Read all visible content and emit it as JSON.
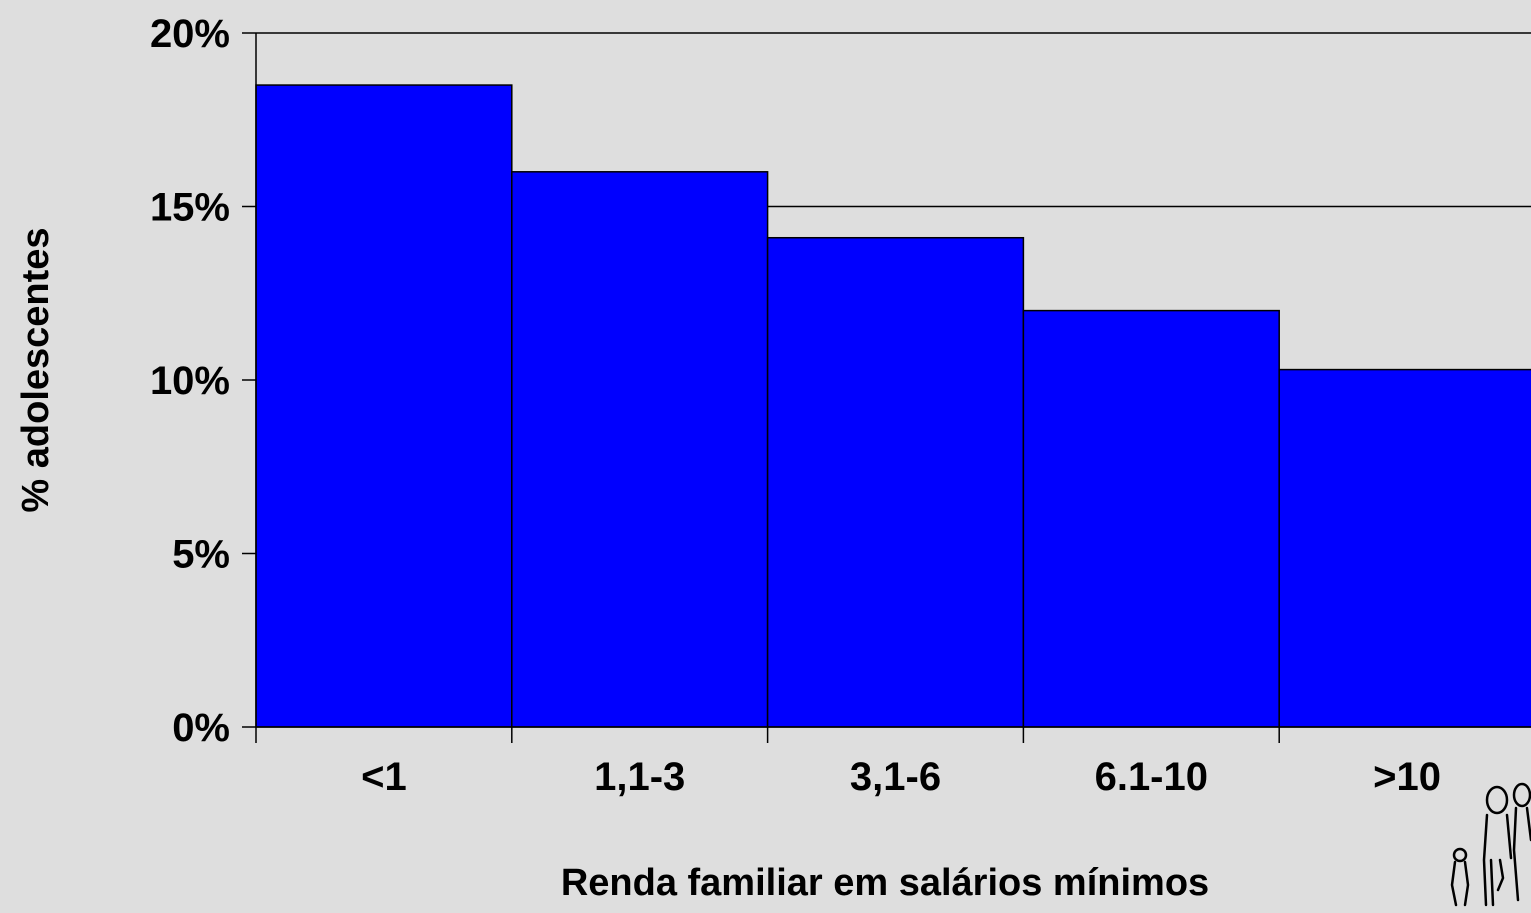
{
  "chart_data": {
    "type": "bar",
    "categories": [
      "<1",
      "1,1-3",
      "3,1-6",
      "6.1-10",
      ">10"
    ],
    "values": [
      18.5,
      16.0,
      14.1,
      12.0,
      10.3
    ],
    "title": "",
    "xlabel": "Renda familiar em salários mínimos",
    "ylabel": "% adolescentes",
    "ylim": [
      0,
      20
    ],
    "yticks": [
      "0%",
      "5%",
      "10%",
      "15%",
      "20%"
    ],
    "ytick_values": [
      0,
      5,
      10,
      15,
      20
    ],
    "grid": "horizontal",
    "legend": "none",
    "bar_color": "#0000ff",
    "bar_edge_color": "#000000",
    "background_color": "#dedede"
  },
  "decoration": {
    "icon": "family-figures-icon"
  }
}
